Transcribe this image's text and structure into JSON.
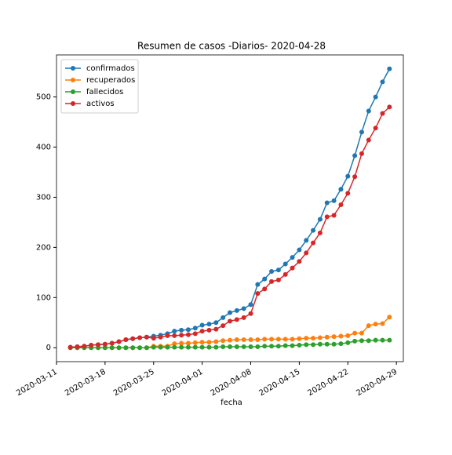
{
  "chart_data": {
    "type": "line",
    "title": "Resumen de casos -Diarios- 2020-04-28",
    "x_label": "fecha",
    "x": [
      "2020-03-13",
      "2020-03-14",
      "2020-03-15",
      "2020-03-16",
      "2020-03-17",
      "2020-03-18",
      "2020-03-19",
      "2020-03-20",
      "2020-03-21",
      "2020-03-22",
      "2020-03-23",
      "2020-03-24",
      "2020-03-25",
      "2020-03-26",
      "2020-03-27",
      "2020-03-28",
      "2020-03-29",
      "2020-03-30",
      "2020-03-31",
      "2020-04-01",
      "2020-04-02",
      "2020-04-03",
      "2020-04-04",
      "2020-04-05",
      "2020-04-06",
      "2020-04-07",
      "2020-04-08",
      "2020-04-09",
      "2020-04-10",
      "2020-04-11",
      "2020-04-12",
      "2020-04-13",
      "2020-04-14",
      "2020-04-15",
      "2020-04-16",
      "2020-04-17",
      "2020-04-18",
      "2020-04-19",
      "2020-04-20",
      "2020-04-21",
      "2020-04-22",
      "2020-04-23",
      "2020-04-24",
      "2020-04-25",
      "2020-04-26",
      "2020-04-27",
      "2020-04-28"
    ],
    "series": [
      {
        "name": "confirmados",
        "color": "#1f77b4",
        "values": [
          1,
          2,
          3,
          5,
          6,
          7,
          9,
          12,
          16,
          18,
          20,
          21,
          23,
          25,
          28,
          33,
          35,
          36,
          39,
          45,
          47,
          50,
          60,
          70,
          74,
          78,
          86,
          126,
          137,
          152,
          155,
          167,
          180,
          195,
          214,
          234,
          256,
          289,
          293,
          316,
          342,
          383,
          430,
          472,
          500,
          530,
          556
        ]
      },
      {
        "name": "recuperados",
        "color": "#ff7f0e",
        "values": [
          0,
          0,
          0,
          0,
          0,
          0,
          0,
          0,
          0,
          0,
          0,
          0,
          3,
          3,
          3,
          8,
          9,
          9,
          10,
          11,
          11,
          12,
          14,
          15,
          16,
          16,
          16,
          16,
          17,
          17,
          17,
          17,
          17,
          18,
          19,
          19,
          20,
          21,
          22,
          23,
          24,
          29,
          29,
          44,
          47,
          48,
          61
        ]
      },
      {
        "name": "fallecidos",
        "color": "#2ca02c",
        "values": [
          0,
          0,
          0,
          0,
          0,
          0,
          0,
          0,
          0,
          0,
          0,
          0,
          1,
          1,
          1,
          1,
          1,
          1,
          1,
          1,
          1,
          1,
          2,
          2,
          2,
          2,
          2,
          2,
          3,
          3,
          3,
          4,
          4,
          5,
          6,
          6,
          7,
          7,
          7,
          8,
          10,
          13,
          14,
          14,
          15,
          15,
          15
        ]
      },
      {
        "name": "activos",
        "color": "#d62728",
        "values": [
          1,
          2,
          3,
          5,
          6,
          7,
          9,
          12,
          16,
          18,
          20,
          21,
          19,
          21,
          24,
          24,
          25,
          26,
          28,
          33,
          35,
          37,
          44,
          53,
          56,
          60,
          68,
          108,
          117,
          132,
          135,
          146,
          159,
          172,
          189,
          209,
          229,
          261,
          264,
          285,
          308,
          341,
          387,
          414,
          438,
          467,
          480
        ]
      }
    ],
    "xlim": [
      "2020-03-11",
      "2020-04-30"
    ],
    "xticks": [
      "2020-03-11",
      "2020-03-18",
      "2020-03-25",
      "2020-04-01",
      "2020-04-08",
      "2020-04-15",
      "2020-04-22",
      "2020-04-29"
    ],
    "ylim": [
      -27.8,
      583.8
    ],
    "yticks": [
      0,
      100,
      200,
      300,
      400,
      500
    ],
    "grid": false,
    "legend": "upper-left"
  }
}
